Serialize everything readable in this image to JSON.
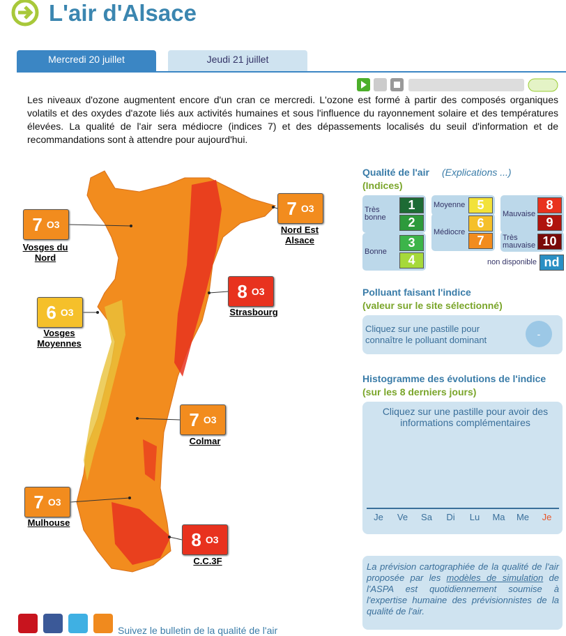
{
  "header": {
    "title": "L'air d'Alsace"
  },
  "tabs": [
    "Mercredi 20 juillet",
    "Jeudi 21 juillet"
  ],
  "description": "Les niveaux d'ozone augmentent encore d'un cran ce mercredi. L'ozone est formé à partir des composés organiques volatils et des oxydes d'azote liés aux activités humaines et sous l'influence du rayonnement solaire et des températures élevées. La qualité de l'air sera médiocre (indices 7) et des dépassements localisés du seuil d'information et de recommandations sont à attendre pour aujourd'hui.",
  "stations": [
    {
      "name": "Vosges du Nord",
      "index": 7,
      "pollutant": "O3"
    },
    {
      "name": "Nord Est Alsace",
      "index": 7,
      "pollutant": "O3"
    },
    {
      "name": "Strasbourg",
      "index": 8,
      "pollutant": "O3"
    },
    {
      "name": "Vosges Moyennes",
      "index": 6,
      "pollutant": "O3"
    },
    {
      "name": "Colmar",
      "index": 7,
      "pollutant": "O3"
    },
    {
      "name": "Mulhouse",
      "index": 7,
      "pollutant": "O3"
    },
    {
      "name": "C.C.3F",
      "index": 8,
      "pollutant": "O3"
    }
  ],
  "legend": {
    "title": "Qualité de l'air",
    "link": "(Explications ...)",
    "subtitle": "(Indices)",
    "groups": [
      {
        "label": "Très bonne",
        "levels": [
          {
            "value": 1,
            "color": "#1d6b35"
          },
          {
            "value": 2,
            "color": "#2d9a3c"
          }
        ]
      },
      {
        "label": "Bonne",
        "levels": [
          {
            "value": 3,
            "color": "#3cb44a"
          },
          {
            "value": 4,
            "color": "#a6d93a"
          }
        ]
      },
      {
        "label": "Moyenne",
        "levels": [
          {
            "value": 5,
            "color": "#f2e23a"
          }
        ]
      },
      {
        "label": "Médiocre",
        "levels": [
          {
            "value": 6,
            "color": "#f5c02a"
          },
          {
            "value": 7,
            "color": "#f28c1e"
          }
        ]
      },
      {
        "label": "Mauvaise",
        "levels": [
          {
            "value": 8,
            "color": "#e8321e"
          },
          {
            "value": 9,
            "color": "#b0140e"
          }
        ]
      },
      {
        "label": "Très mauvaise",
        "levels": [
          {
            "value": 10,
            "color": "#7a0a08"
          }
        ]
      },
      {
        "label": "non disponible",
        "levels": [
          {
            "value": "nd",
            "color": "#2a8fc4"
          }
        ]
      }
    ]
  },
  "pollutant_panel": {
    "title": "Polluant faisant l'indice",
    "subtitle": "(valeur sur le site sélectionné)",
    "message": "Cliquez sur une pastille pour connaître le polluant dominant",
    "button": "-"
  },
  "histogram": {
    "title": "Histogramme des évolutions de l'indice",
    "subtitle": "(sur les 8 derniers jours)",
    "message": "Cliquez sur une pastille pour avoir des informations complémentaires",
    "days": [
      "Je",
      "Ve",
      "Sa",
      "Di",
      "Lu",
      "Ma",
      "Me",
      "Je"
    ]
  },
  "note": {
    "before": "La prévision cartographiée de la qualité de l'air proposée par les ",
    "link": "modèles de simulation",
    "after": " de l'ASPA est quotidiennement soumise à l'expertise humaine des prévisionnistes de la qualité de l'air."
  },
  "footer": {
    "follow": "Suivez le bulletin de la qualité de l'air"
  }
}
